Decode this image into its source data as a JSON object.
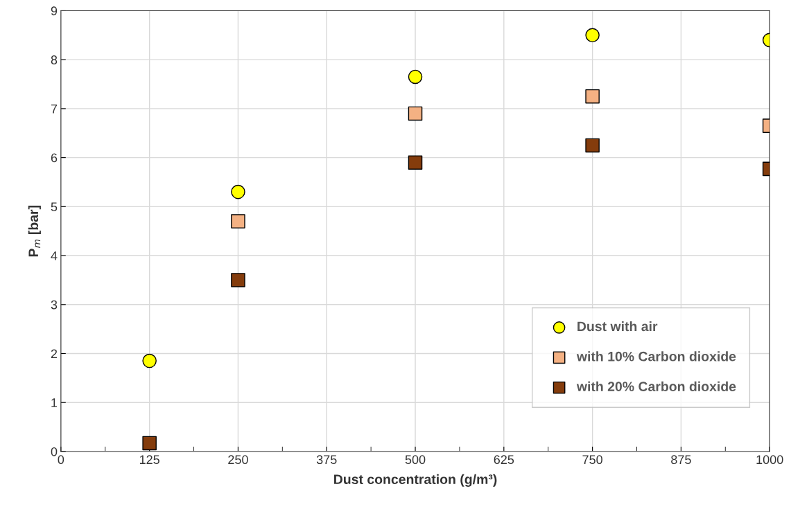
{
  "chart_data": {
    "type": "scatter",
    "xlabel": "Dust concentration (g/m³)",
    "ylabel": "P$_{m}$ [bar]",
    "x": [
      125,
      250,
      500,
      750,
      1000
    ],
    "series": [
      {
        "name": "Dust with air",
        "color": "#ffff00",
        "marker": "circle",
        "values": [
          1.85,
          5.3,
          7.65,
          8.5,
          8.4
        ]
      },
      {
        "name": "with 10% Carbon dioxide",
        "color": "#f4b183",
        "marker": "square",
        "values": [
          null,
          4.7,
          6.9,
          7.25,
          6.65
        ]
      },
      {
        "name": "with 20% Carbon dioxide",
        "color": "#843c0c",
        "marker": "square",
        "values": [
          0.17,
          3.5,
          5.9,
          6.25,
          5.77
        ]
      }
    ],
    "xlim": [
      0,
      1000
    ],
    "xticks": [
      0,
      125,
      250,
      375,
      500,
      625,
      750,
      875,
      1000
    ],
    "ylim": [
      0,
      9
    ],
    "yticks": [
      0,
      1,
      2,
      3,
      4,
      5,
      6,
      7,
      8,
      9
    ],
    "grid": true,
    "legend": "bottom right"
  }
}
